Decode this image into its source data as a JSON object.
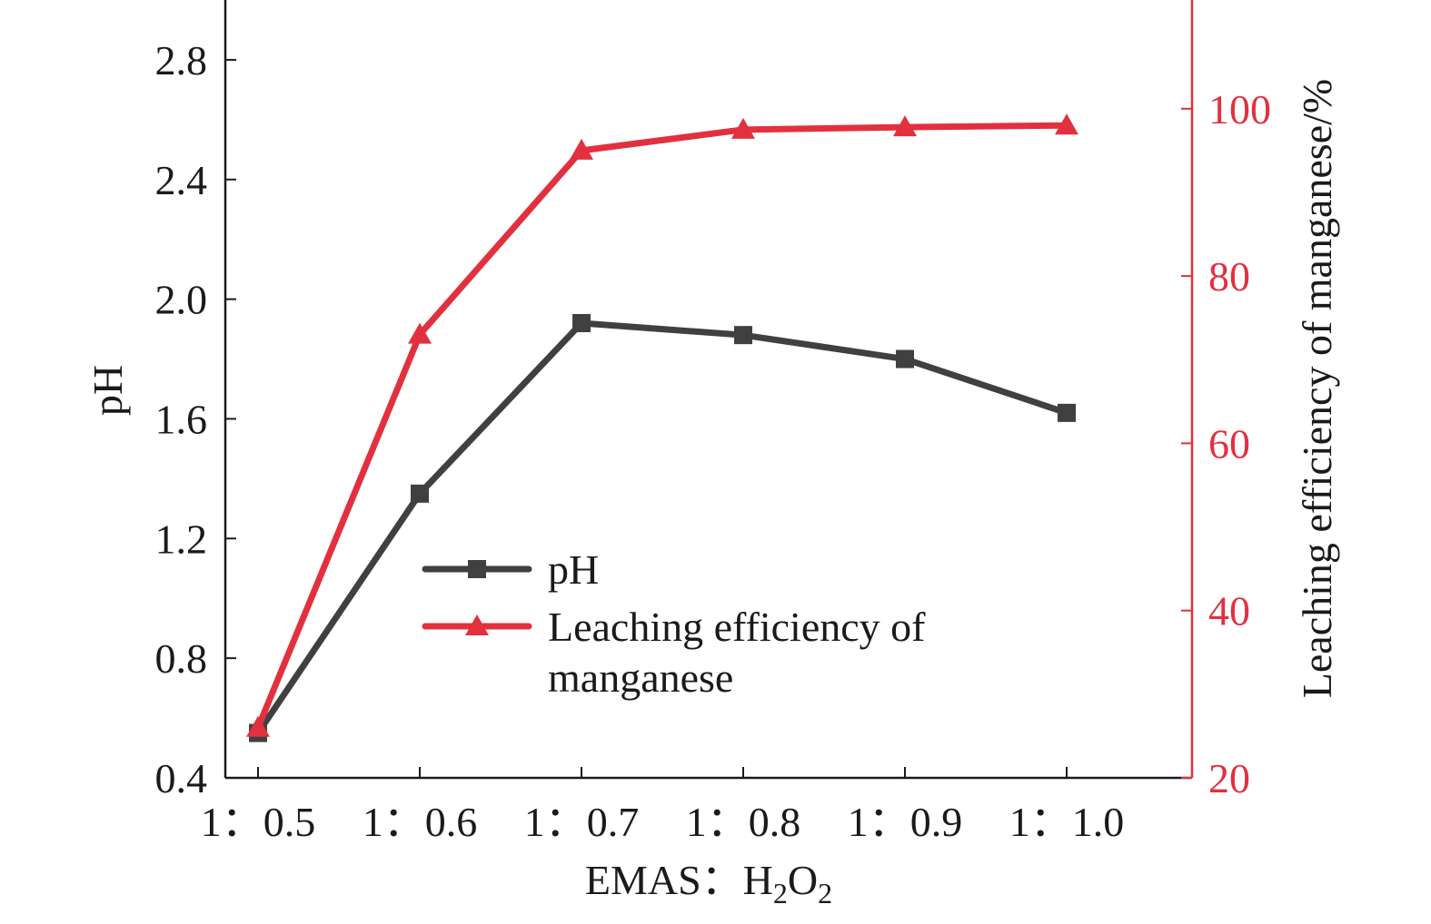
{
  "chart_data": {
    "type": "line",
    "categories": [
      "1：0.5",
      "1：0.6",
      "1：0.7",
      "1：0.8",
      "1：0.9",
      "1：1.0"
    ],
    "xlabel": "EMAS：H₂O₂",
    "xlabel_parts": {
      "base": "EMAS：H",
      "sub1": "2",
      "mid": "O",
      "sub2": "2"
    },
    "ylabel": "pH",
    "y2label": "Leaching efficiency of manganese/%",
    "ylim": [
      0.4,
      3.0
    ],
    "yticks": [
      "0.4",
      "0.8",
      "1.2",
      "1.6",
      "2.0",
      "2.4",
      "2.8"
    ],
    "y2lim": [
      20,
      113
    ],
    "y2ticks": [
      "20",
      "40",
      "60",
      "80",
      "100"
    ],
    "series": [
      {
        "name": "pH",
        "axis": "left",
        "color": "#404040",
        "marker": "square",
        "values": [
          0.55,
          1.35,
          1.92,
          1.88,
          1.8,
          1.62
        ]
      },
      {
        "name": "Leaching efficiency of manganese",
        "axis": "right",
        "color": "#e2303f",
        "marker": "triangle",
        "values": [
          26.0,
          73.0,
          95.0,
          97.5,
          97.8,
          98.0
        ]
      }
    ],
    "legend": {
      "position": "center-left",
      "entries": [
        {
          "lines": [
            "pH"
          ]
        },
        {
          "lines": [
            "Leaching efficiency of",
            "manganese"
          ]
        }
      ]
    },
    "grid": false
  }
}
